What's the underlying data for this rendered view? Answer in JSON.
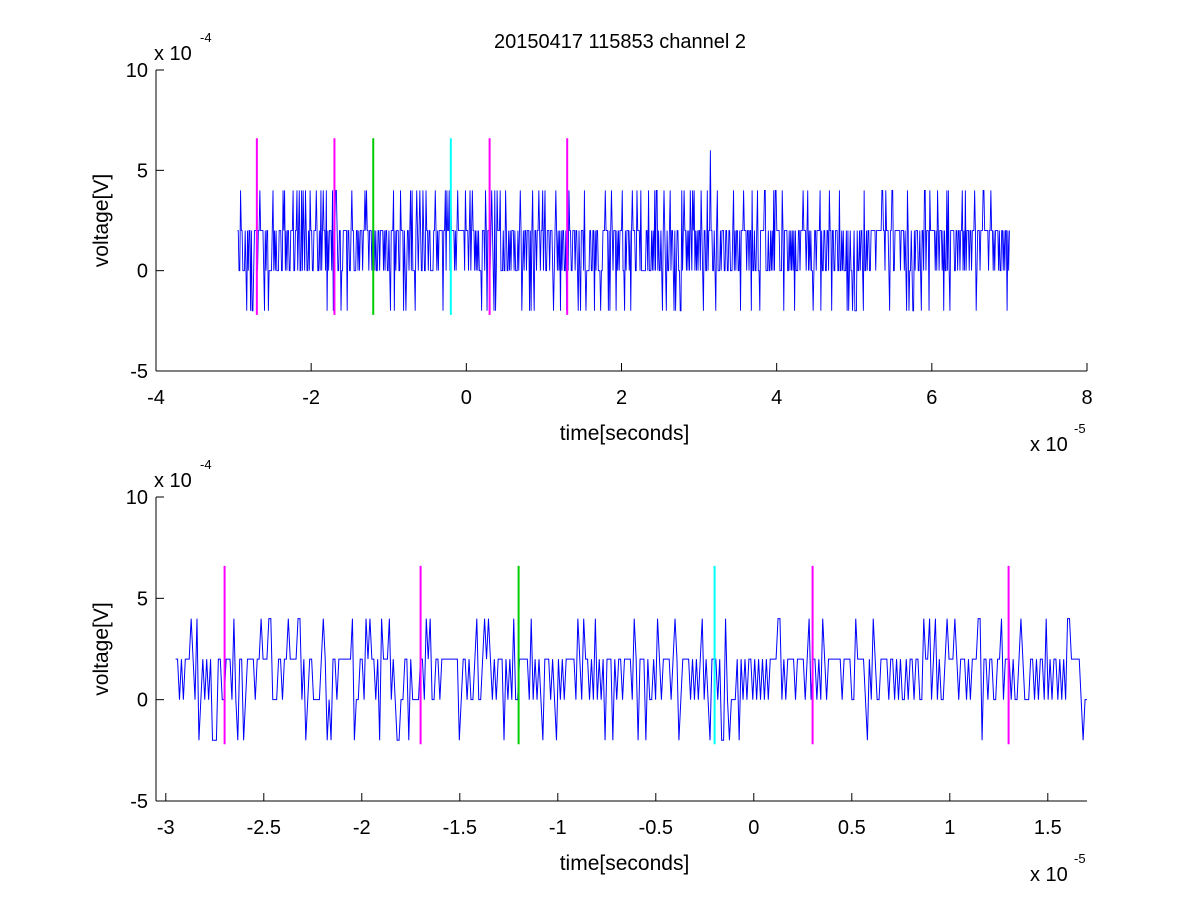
{
  "figure": {
    "title": "20150417 115853 channel 2",
    "background": "#ffffff",
    "axis_color": "#000000",
    "trace_color": "#0000ff",
    "marker_colors": {
      "magenta": "#ff00ff",
      "green": "#00cc00",
      "cyan": "#00ffff"
    }
  },
  "chart_data": [
    {
      "type": "line",
      "title": "20150417 115853 channel 2",
      "xlabel": "time[seconds]",
      "ylabel": "voltage[V]",
      "x_multiplier_label": "x 10",
      "x_multiplier_exp": "-5",
      "y_multiplier_label": "x 10",
      "y_multiplier_exp": "-4",
      "xlim": [
        -4,
        8
      ],
      "ylim": [
        -5,
        10
      ],
      "xticks": [
        -4,
        -2,
        0,
        2,
        4,
        6,
        8
      ],
      "xtick_labels": [
        "-4",
        "-2",
        "0",
        "2",
        "4",
        "6",
        "8"
      ],
      "yticks": [
        -5,
        0,
        5,
        10
      ],
      "ytick_labels": [
        "-5",
        "0",
        "5",
        "10"
      ],
      "grid": false,
      "box": "open",
      "series": [
        {
          "color": "#0000ff",
          "x_range": [
            -2.95,
            7.0
          ],
          "levels": [
            -2,
            0,
            2,
            4,
            6
          ],
          "baseline_levels": [
            0,
            2
          ],
          "peak": {
            "x": 3.15,
            "y": 6
          },
          "samples": 1000
        }
      ],
      "markers": [
        {
          "x": -2.7,
          "color": "#ff00ff",
          "y_range": [
            -2.2,
            6.6
          ]
        },
        {
          "x": -1.7,
          "color": "#ff00ff",
          "y_range": [
            -2.2,
            6.6
          ]
        },
        {
          "x": -1.2,
          "color": "#00cc00",
          "y_range": [
            -2.2,
            6.6
          ]
        },
        {
          "x": -0.2,
          "color": "#00ffff",
          "y_range": [
            -2.2,
            6.6
          ]
        },
        {
          "x": 0.3,
          "color": "#ff00ff",
          "y_range": [
            -2.2,
            6.6
          ]
        },
        {
          "x": 1.3,
          "color": "#ff00ff",
          "y_range": [
            -2.2,
            6.6
          ]
        }
      ]
    },
    {
      "type": "line",
      "title": "",
      "xlabel": "time[seconds]",
      "ylabel": "voltage[V]",
      "x_multiplier_label": "x 10",
      "x_multiplier_exp": "-5",
      "y_multiplier_label": "x 10",
      "y_multiplier_exp": "-4",
      "xlim": [
        -3.05,
        1.7
      ],
      "ylim": [
        -5,
        10
      ],
      "xticks": [
        -3,
        -2.5,
        -2,
        -1.5,
        -1,
        -0.5,
        0,
        0.5,
        1,
        1.5
      ],
      "xtick_labels": [
        "-3",
        "-2.5",
        "-2",
        "-1.5",
        "-1",
        "-0.5",
        "0",
        "0.5",
        "1",
        "1.5"
      ],
      "yticks": [
        -5,
        0,
        5,
        10
      ],
      "ytick_labels": [
        "-5",
        "0",
        "5",
        "10"
      ],
      "grid": false,
      "box": "open",
      "series": [
        {
          "color": "#0000ff",
          "x_range": [
            -2.95,
            1.7
          ],
          "levels": [
            -2,
            0,
            2,
            4
          ],
          "baseline_levels": [
            0,
            2
          ],
          "samples": 470
        }
      ],
      "markers": [
        {
          "x": -2.7,
          "color": "#ff00ff",
          "y_range": [
            -2.2,
            6.6
          ]
        },
        {
          "x": -1.7,
          "color": "#ff00ff",
          "y_range": [
            -2.2,
            6.6
          ]
        },
        {
          "x": -1.2,
          "color": "#00cc00",
          "y_range": [
            -2.2,
            6.6
          ]
        },
        {
          "x": -0.2,
          "color": "#00ffff",
          "y_range": [
            -2.2,
            6.6
          ]
        },
        {
          "x": 0.3,
          "color": "#ff00ff",
          "y_range": [
            -2.2,
            6.6
          ]
        },
        {
          "x": 1.3,
          "color": "#ff00ff",
          "y_range": [
            -2.2,
            6.6
          ]
        }
      ]
    }
  ]
}
